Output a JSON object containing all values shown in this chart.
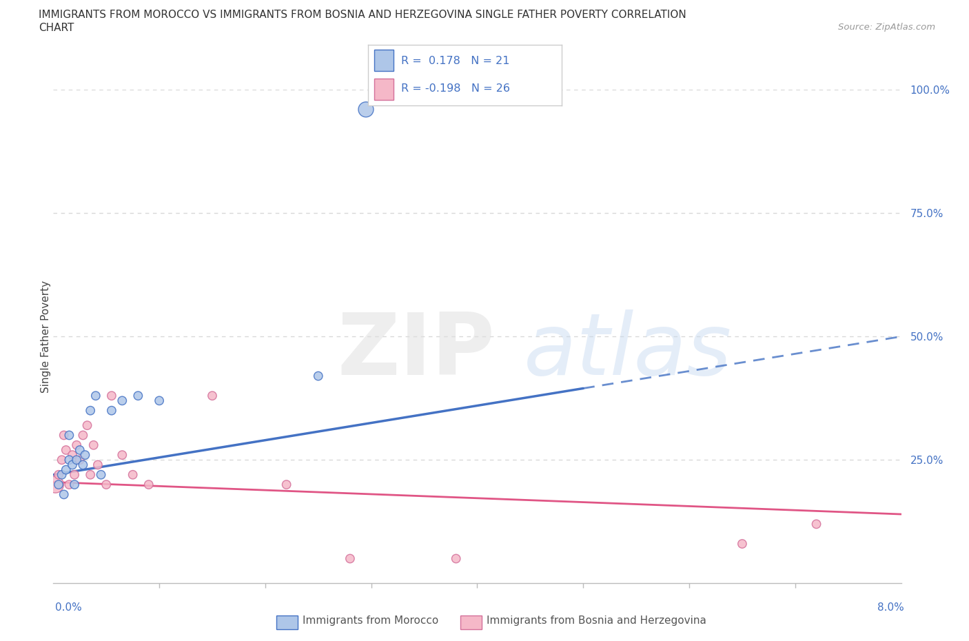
{
  "title_line1": "IMMIGRANTS FROM MOROCCO VS IMMIGRANTS FROM BOSNIA AND HERZEGOVINA SINGLE FATHER POVERTY CORRELATION",
  "title_line2": "CHART",
  "source": "Source: ZipAtlas.com",
  "ylabel": "Single Father Poverty",
  "xlim": [
    0.0,
    8.0
  ],
  "ylim": [
    0.0,
    100.0
  ],
  "ytick_vals": [
    25,
    50,
    75,
    100
  ],
  "ytick_labels": [
    "25.0%",
    "50.0%",
    "75.0%",
    "100.0%"
  ],
  "morocco_scatter_color": "#aec6e8",
  "morocco_scatter_edge": "#4472c4",
  "bosnia_scatter_color": "#f5b8c8",
  "bosnia_scatter_edge": "#d4709a",
  "morocco_line_color": "#4472c4",
  "bosnia_line_color": "#e05585",
  "legend_color": "#4472c4",
  "grid_color": "#d8d8d8",
  "background": "#ffffff",
  "morocco_x": [
    0.05,
    0.08,
    0.1,
    0.12,
    0.15,
    0.15,
    0.18,
    0.2,
    0.22,
    0.25,
    0.28,
    0.3,
    0.35,
    0.4,
    0.45,
    0.55,
    0.65,
    0.8,
    1.0,
    2.5,
    2.95
  ],
  "morocco_y": [
    20,
    22,
    18,
    23,
    25,
    30,
    24,
    20,
    25,
    27,
    24,
    26,
    35,
    38,
    22,
    35,
    37,
    38,
    37,
    42,
    96
  ],
  "morocco_size": [
    80,
    80,
    80,
    80,
    80,
    80,
    80,
    80,
    80,
    80,
    80,
    80,
    80,
    80,
    80,
    80,
    80,
    80,
    80,
    80,
    250
  ],
  "bosnia_x": [
    0.02,
    0.05,
    0.08,
    0.1,
    0.12,
    0.15,
    0.18,
    0.2,
    0.22,
    0.25,
    0.28,
    0.32,
    0.35,
    0.38,
    0.42,
    0.5,
    0.55,
    0.65,
    0.75,
    0.9,
    1.5,
    2.2,
    2.8,
    3.8,
    6.5,
    7.2
  ],
  "bosnia_y": [
    20,
    22,
    25,
    30,
    27,
    20,
    26,
    22,
    28,
    25,
    30,
    32,
    22,
    28,
    24,
    20,
    38,
    26,
    22,
    20,
    38,
    20,
    5,
    5,
    8,
    12
  ],
  "bosnia_size": [
    300,
    80,
    80,
    80,
    80,
    80,
    80,
    80,
    80,
    80,
    80,
    80,
    80,
    80,
    80,
    80,
    80,
    80,
    80,
    80,
    80,
    80,
    80,
    80,
    80,
    80
  ],
  "morocco_line_x0": 0.0,
  "morocco_line_y0": 22.0,
  "morocco_line_x1": 8.0,
  "morocco_line_y1": 50.0,
  "morocco_dash_start": 5.0,
  "bosnia_line_x0": 0.0,
  "bosnia_line_y0": 20.5,
  "bosnia_line_x1": 8.0,
  "bosnia_line_y1": 14.0
}
